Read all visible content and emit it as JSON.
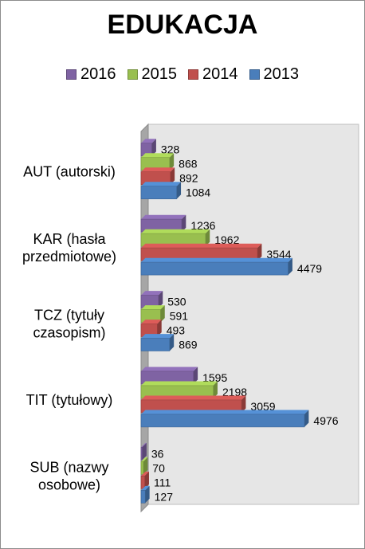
{
  "chart_data": {
    "type": "bar",
    "orientation": "horizontal",
    "title": "EDUKACJA",
    "categories": [
      [
        "AUT (autorski)"
      ],
      [
        "KAR (hasła",
        "przedmiotowe)"
      ],
      [
        "TCZ (tytuły",
        "czasopism)"
      ],
      [
        "TIT (tytułowy)"
      ],
      [
        "SUB (nazwy",
        "osobowe)"
      ]
    ],
    "series": [
      {
        "name": "2016",
        "color": "#7f63a3",
        "values": [
          328,
          1236,
          530,
          1595,
          36
        ]
      },
      {
        "name": "2015",
        "color": "#99bf4f",
        "values": [
          868,
          1962,
          591,
          2198,
          70
        ]
      },
      {
        "name": "2014",
        "color": "#c0504d",
        "values": [
          892,
          3544,
          493,
          3059,
          111
        ]
      },
      {
        "name": "2013",
        "color": "#4a7ebb",
        "values": [
          1084,
          4479,
          869,
          4976,
          127
        ]
      }
    ],
    "xlim": [
      0,
      5000
    ],
    "legend_position": "top",
    "grid": false,
    "style": "3d"
  }
}
